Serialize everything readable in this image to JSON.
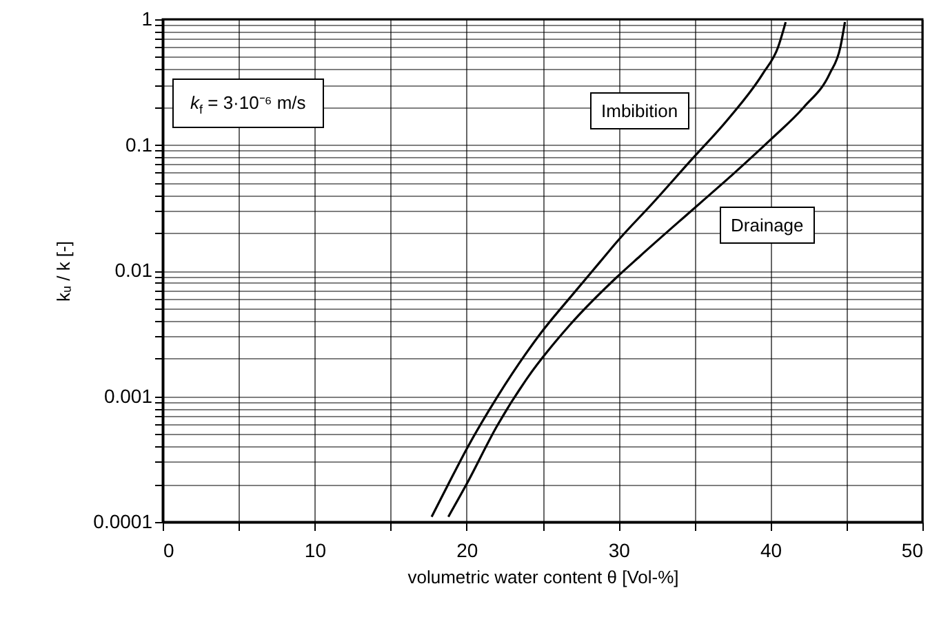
{
  "chart_data": {
    "type": "line",
    "xlabel": "volumetric water content θ [Vol-%]",
    "ylabel": "kᵤ / k [-]",
    "annotations": [
      "k$_{f}$ = 3·10⁻⁶ m/s"
    ],
    "log": "y",
    "grid": true,
    "legend": false,
    "marker": "none",
    "line_style": "solid",
    "xlim": [
      0,
      50
    ],
    "ylim": [
      0.0001,
      1
    ],
    "xticks": [
      0,
      {
        "value": 5,
        "label": null
      },
      10,
      {
        "value": 15,
        "label": null
      },
      20,
      {
        "value": 25,
        "label": null
      },
      30,
      {
        "value": 35,
        "label": null
      },
      40,
      {
        "value": 45,
        "label": null
      },
      50
    ],
    "yticks": [
      0.0001,
      {
        "value": 0.0002,
        "label": null
      },
      {
        "value": 0.0003,
        "label": null
      },
      {
        "value": 0.0004,
        "label": null
      },
      {
        "value": 0.0005,
        "label": null
      },
      {
        "value": 0.0006,
        "label": null
      },
      {
        "value": 0.0007,
        "label": null
      },
      {
        "value": 0.0008,
        "label": null
      },
      {
        "value": 0.0009,
        "label": null
      },
      0.001,
      {
        "value": 0.002,
        "label": null
      },
      {
        "value": 0.003,
        "label": null
      },
      {
        "value": 0.004,
        "label": null
      },
      {
        "value": 0.005,
        "label": null
      },
      {
        "value": 0.006,
        "label": null
      },
      {
        "value": 0.007,
        "label": null
      },
      {
        "value": 0.008,
        "label": null
      },
      {
        "value": 0.009,
        "label": null
      },
      0.01,
      {
        "value": 0.02,
        "label": null
      },
      {
        "value": 0.03,
        "label": null
      },
      {
        "value": 0.04,
        "label": null
      },
      {
        "value": 0.05,
        "label": null
      },
      {
        "value": 0.06,
        "label": null
      },
      {
        "value": 0.07,
        "label": null
      },
      {
        "value": 0.08,
        "label": null
      },
      {
        "value": 0.09,
        "label": null
      },
      0.1,
      {
        "value": 0.2,
        "label": null
      },
      {
        "value": 0.3,
        "label": null
      },
      {
        "value": 0.4,
        "label": null
      },
      {
        "value": 0.5,
        "label": null
      },
      {
        "value": 0.6,
        "label": null
      },
      {
        "value": 0.7,
        "label": null
      },
      {
        "value": 0.8,
        "label": null
      },
      {
        "value": 0.9,
        "label": null
      },
      1
    ],
    "series": [
      {
        "name": "Imbibition",
        "color": "#000000",
        "x": [
          17.7,
          18.8,
          20.0,
          22.0,
          24.9,
          27.0,
          28.8,
          29.9,
          32.3,
          34.7,
          37.2,
          39.5,
          40.5,
          41.0
        ],
        "values": [
          0.00011,
          0.0002,
          0.00038,
          0.00098,
          0.0032,
          0.0065,
          0.0118,
          0.017,
          0.035,
          0.074,
          0.16,
          0.37,
          0.6,
          0.95
        ]
      },
      {
        "name": "Drainage",
        "color": "#000000",
        "x": [
          18.8,
          20.0,
          22.0,
          24.0,
          26.8,
          29.9,
          31.4,
          34.8,
          37.5,
          40.0,
          42.2,
          43.9,
          44.6,
          44.9
        ],
        "values": [
          0.00011,
          0.0002,
          0.00058,
          0.0014,
          0.0037,
          0.0089,
          0.013,
          0.03,
          0.058,
          0.11,
          0.2,
          0.37,
          0.6,
          0.95
        ]
      }
    ]
  }
}
